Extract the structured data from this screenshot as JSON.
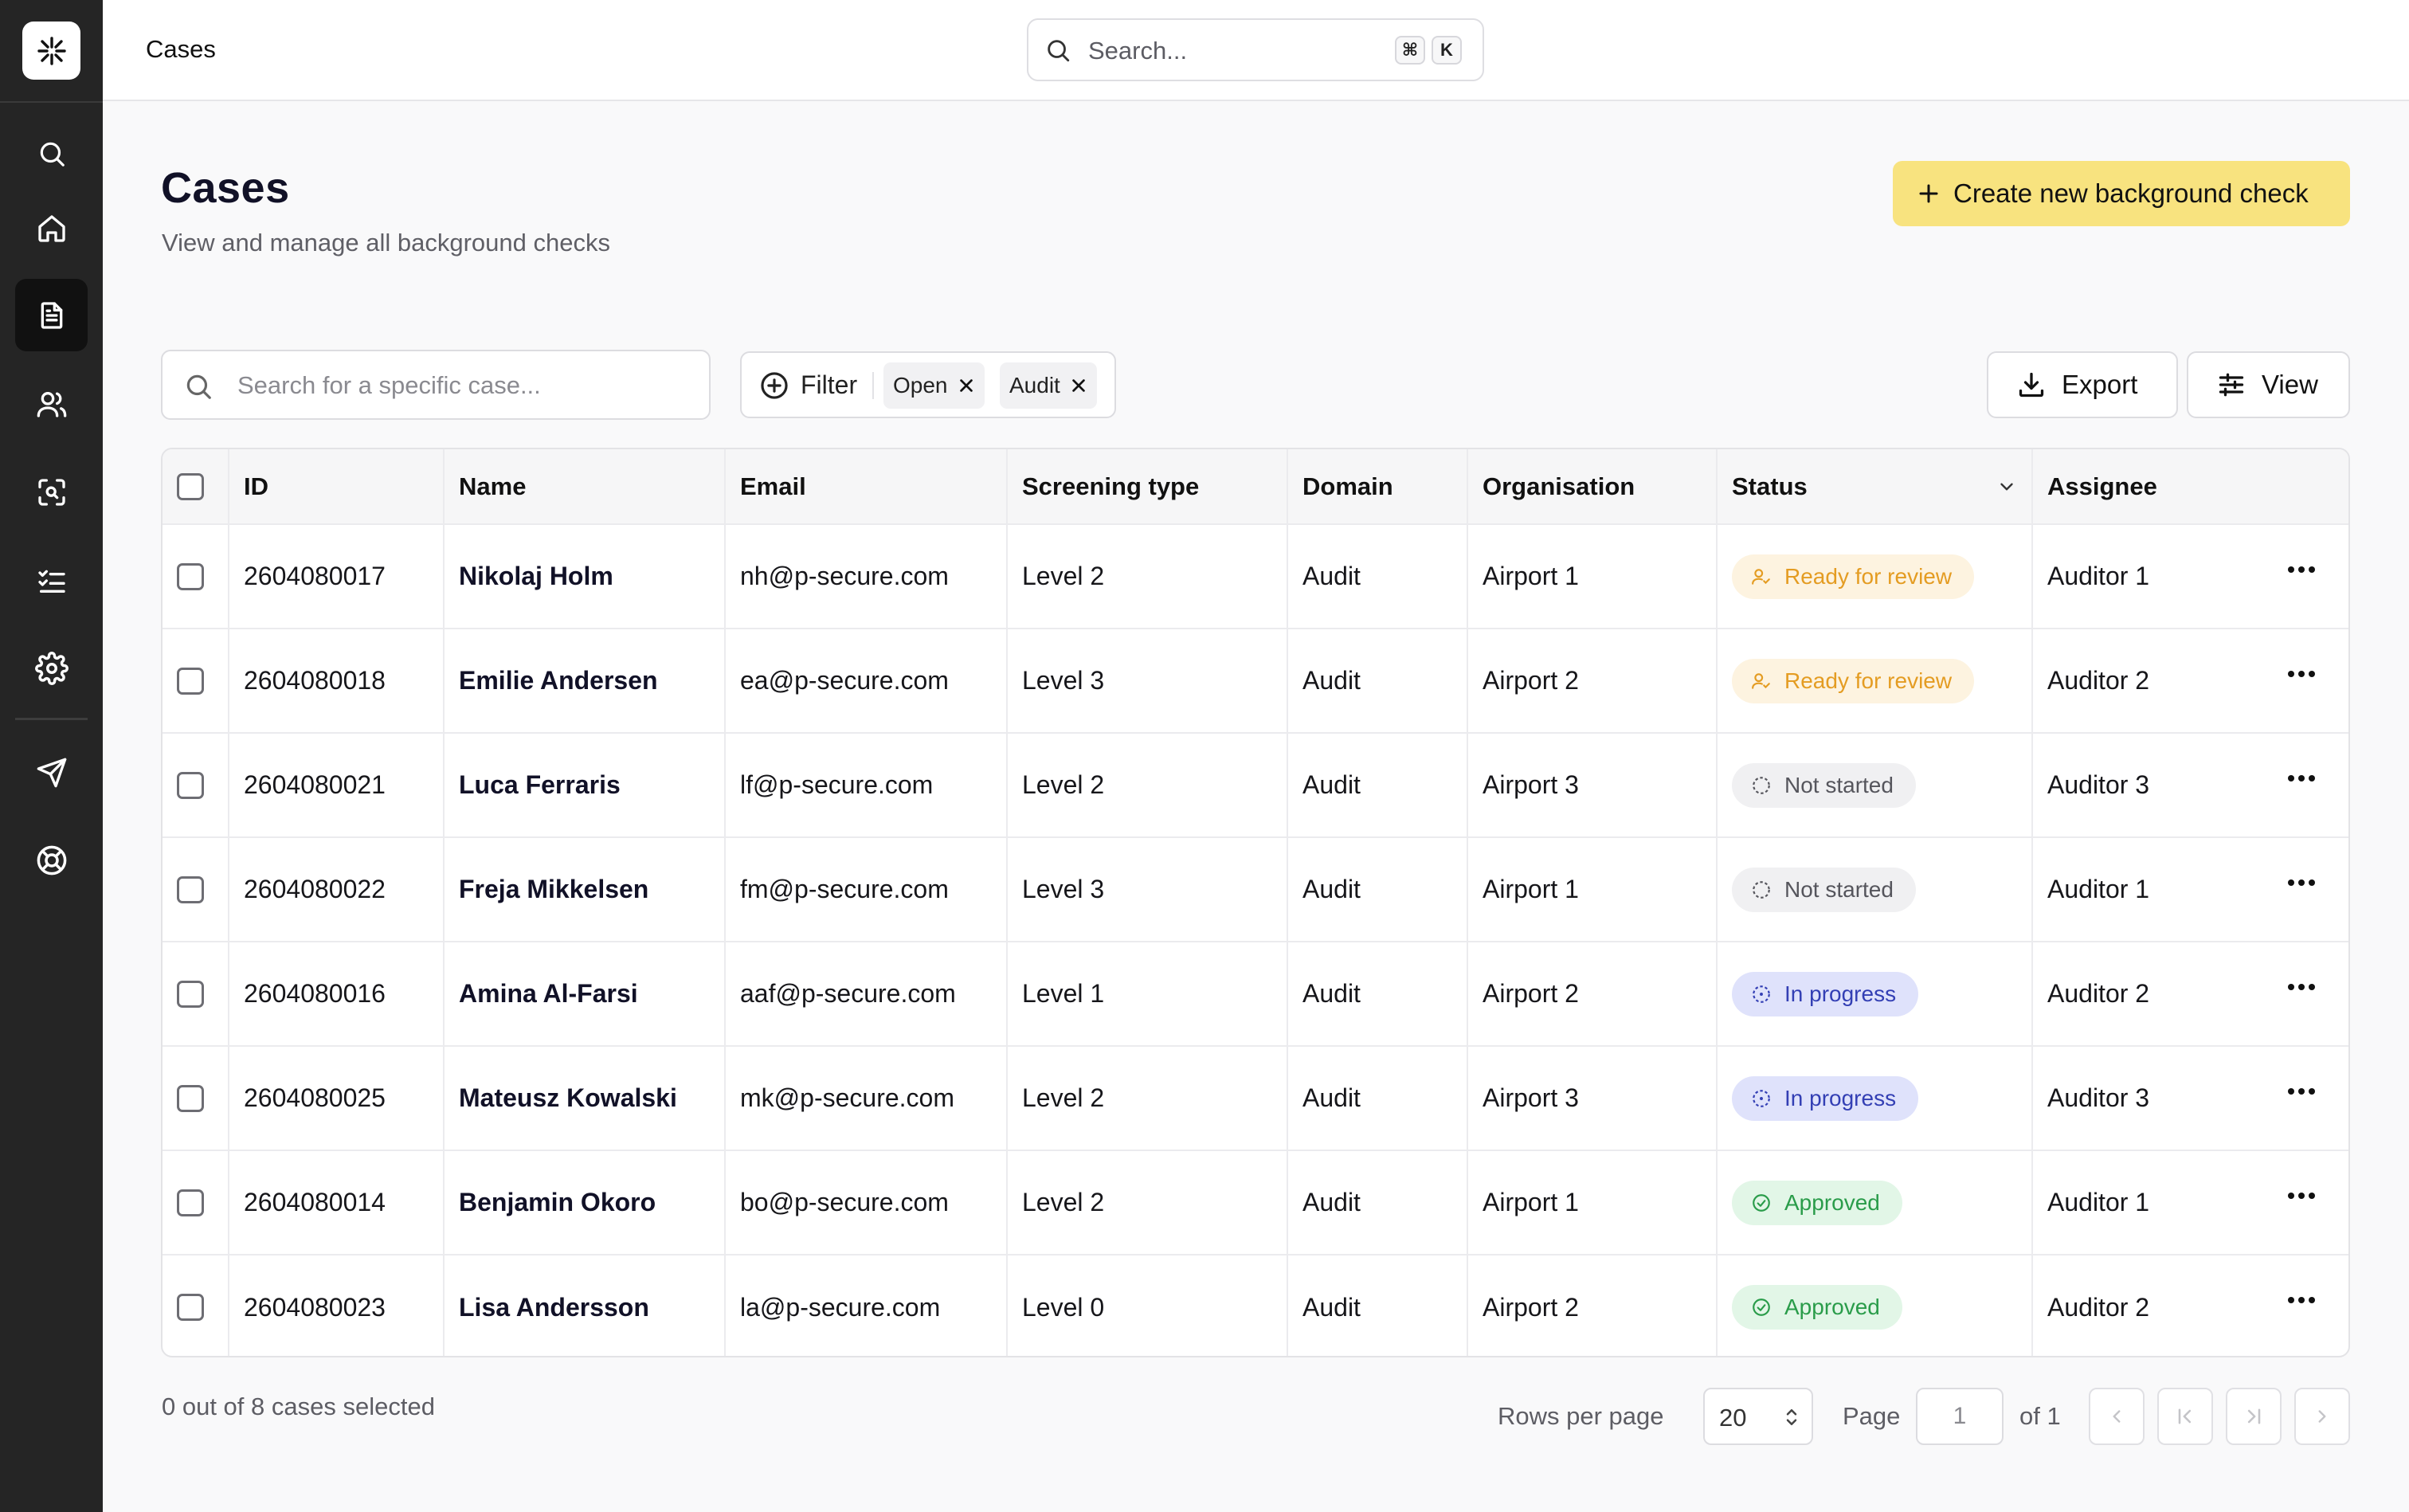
{
  "topbar": {
    "breadcrumb": "Cases",
    "search_placeholder": "Search...",
    "shortcut_keys": [
      "⌘",
      "K"
    ]
  },
  "sidebar": {
    "items": [
      {
        "icon": "search-icon",
        "active": false
      },
      {
        "icon": "home-icon",
        "active": false
      },
      {
        "icon": "document-icon",
        "active": true
      },
      {
        "icon": "users-icon",
        "active": false
      },
      {
        "icon": "scan-face-icon",
        "active": false
      },
      {
        "icon": "checklist-icon",
        "active": false
      },
      {
        "icon": "gear-icon",
        "active": false
      },
      {
        "icon": "send-icon",
        "active": false
      },
      {
        "icon": "lifebuoy-icon",
        "active": false
      }
    ]
  },
  "header": {
    "title": "Cases",
    "subtitle": "View and manage all background checks",
    "create_button": "Create new background check"
  },
  "toolbar": {
    "search_placeholder": "Search for a specific case...",
    "filter_label": "Filter",
    "chips": [
      "Open",
      "Audit"
    ],
    "export_label": "Export",
    "view_label": "View"
  },
  "table": {
    "columns": [
      "ID",
      "Name",
      "Email",
      "Screening type",
      "Domain",
      "Organisation",
      "Status",
      "Assignee"
    ],
    "rows": [
      {
        "id": "2604080017",
        "name": "Nikolaj Holm",
        "email": "nh@p-secure.com",
        "screening": "Level 2",
        "domain": "Audit",
        "org": "Airport 1",
        "status": "Ready for review",
        "status_kind": "review",
        "assignee": "Auditor 1"
      },
      {
        "id": "2604080018",
        "name": "Emilie Andersen",
        "email": "ea@p-secure.com",
        "screening": "Level 3",
        "domain": "Audit",
        "org": "Airport 2",
        "status": "Ready for review",
        "status_kind": "review",
        "assignee": "Auditor 2"
      },
      {
        "id": "2604080021",
        "name": "Luca Ferraris",
        "email": "lf@p-secure.com",
        "screening": "Level 2",
        "domain": "Audit",
        "org": "Airport 3",
        "status": "Not started",
        "status_kind": "notstarted",
        "assignee": "Auditor 3"
      },
      {
        "id": "2604080022",
        "name": "Freja Mikkelsen",
        "email": "fm@p-secure.com",
        "screening": "Level 3",
        "domain": "Audit",
        "org": "Airport 1",
        "status": "Not started",
        "status_kind": "notstarted",
        "assignee": "Auditor 1"
      },
      {
        "id": "2604080016",
        "name": "Amina Al-Farsi",
        "email": "aaf@p-secure.com",
        "screening": "Level 1",
        "domain": "Audit",
        "org": "Airport 2",
        "status": "In progress",
        "status_kind": "progress",
        "assignee": "Auditor 2"
      },
      {
        "id": "2604080025",
        "name": "Mateusz Kowalski",
        "email": "mk@p-secure.com",
        "screening": "Level 2",
        "domain": "Audit",
        "org": "Airport 3",
        "status": "In progress",
        "status_kind": "progress",
        "assignee": "Auditor 3"
      },
      {
        "id": "2604080014",
        "name": "Benjamin Okoro",
        "email": "bo@p-secure.com",
        "screening": "Level 2",
        "domain": "Audit",
        "org": "Airport 1",
        "status": "Approved",
        "status_kind": "approved",
        "assignee": "Auditor 1"
      },
      {
        "id": "2604080023",
        "name": "Lisa Andersson",
        "email": "la@p-secure.com",
        "screening": "Level 0",
        "domain": "Audit",
        "org": "Airport 2",
        "status": "Approved",
        "status_kind": "approved",
        "assignee": "Auditor 2"
      }
    ]
  },
  "footer": {
    "selected_text": "0 out of 8 cases selected",
    "rows_per_page_label": "Rows per page",
    "rows_per_page_value": "20",
    "page_label": "Page",
    "page_value": "1",
    "of_label": "of 1"
  },
  "colors": {
    "sidebar_bg": "#252525",
    "accent_yellow": "#f8e37f",
    "review": "#e49c22",
    "progress": "#333fb4",
    "approved": "#2a9c4a"
  }
}
